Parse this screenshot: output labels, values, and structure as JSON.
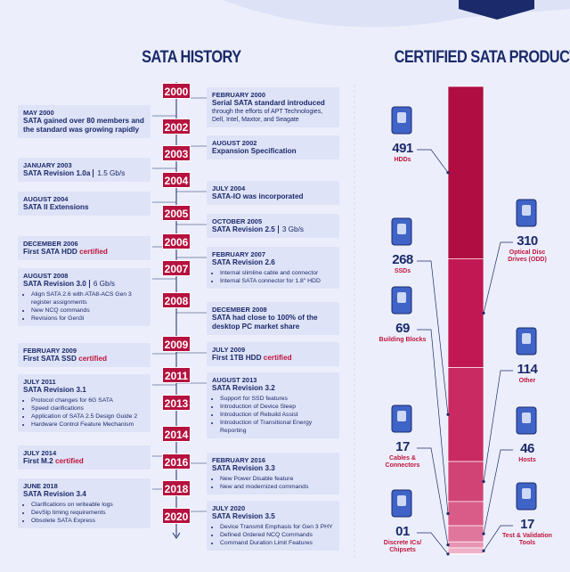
{
  "history": {
    "title": "SATA HISTORY",
    "years": [
      "2000",
      "2002",
      "2003",
      "2004",
      "2005",
      "2006",
      "2007",
      "2008",
      "2009",
      "2011",
      "2013",
      "2014",
      "2016",
      "2018",
      "2020"
    ],
    "events": [
      {
        "date": "MAY 2000",
        "title": "SATA gained over 80 members and the standard was growing rapidly"
      },
      {
        "date": "FEBRUARY 2000",
        "title": "Serial SATA standard introduced",
        "details": "through the efforts of APT Technologies, Dell, Intel, Maxtor, and Seagate"
      },
      {
        "date": "AUGUST 2002",
        "title": "Expansion Specification"
      },
      {
        "date": "JANUARY 2003",
        "title": "SATA Revision 1.0a",
        "tag": "1.5 Gb/s"
      },
      {
        "date": "JULY 2004",
        "title": "SATA-IO was incorporated"
      },
      {
        "date": "AUGUST 2004",
        "title": "SATA II Extensions"
      },
      {
        "date": "OCTOBER 2005",
        "title": "SATA Revision 2.5",
        "tag": "3 Gb/s"
      },
      {
        "date": "DECEMBER 2006",
        "title": "First SATA HDD",
        "highlight": "certified"
      },
      {
        "date": "FEBRUARY 2007",
        "title": "SATA Revision 2.6",
        "bullets": [
          "Internal slimline cable and connector",
          "Internal SATA connector for 1.8\" HDD"
        ]
      },
      {
        "date": "AUGUST 2008",
        "title": "SATA Revision 3.0",
        "tag": "6 Gb/s",
        "bullets": [
          "Align SATA 2.6 with ATA8-ACS Gen 3 register assignments",
          "New NCQ commands",
          "Revisions for Gen3i"
        ]
      },
      {
        "date": "DECEMBER 2008",
        "title": "SATA had close to 100% of the desktop PC market share"
      },
      {
        "date": "FEBRUARY 2009",
        "title": "First SATA SSD",
        "highlight": "certified"
      },
      {
        "date": "JULY 2009",
        "title": "First 1TB HDD",
        "highlight": "certified"
      },
      {
        "date": "JULY 2011",
        "title": "SATA Revision 3.1",
        "bullets": [
          "Protocol changes for 6G SATA",
          "Speed clarifications",
          "Application of SATA 2.5 Design Guide 2",
          "Hardware Control Feature Mechanism"
        ]
      },
      {
        "date": "AUGUST 2013",
        "title": "SATA Revision 3.2",
        "bullets": [
          "Support for SSD features",
          "Introduction of Device Sleep",
          "Introduction of Rebuild Assist",
          "Introduction of Transitional Energy Reporting"
        ]
      },
      {
        "date": "JULY 2014",
        "title": "First M.2",
        "highlight": "certified"
      },
      {
        "date": "FEBRUARY 2016",
        "title": "SATA Revision 3.3",
        "bullets": [
          "New Power Disable feature",
          "New and modernized commands"
        ]
      },
      {
        "date": "JUNE 2018",
        "title": "SATA Revision 3.4",
        "bullets": [
          "Clarifications on writeable logs",
          "DevSlp timing requirements",
          "Obsolete SATA Express"
        ]
      },
      {
        "date": "JULY 2020",
        "title": "SATA Revision 3.5",
        "bullets": [
          "Device Transmit Emphasis for Gen 3 PHY",
          "Defined Ordered NCQ Commands",
          "Command Duration Limit Features"
        ]
      }
    ]
  },
  "products": {
    "title": "CERTIFIED SATA PRODUCTS",
    "items": [
      {
        "count": "491",
        "label": "HDDs"
      },
      {
        "count": "310",
        "label": "Optical Disc Drives (ODD)"
      },
      {
        "count": "268",
        "label": "SSDs"
      },
      {
        "count": "114",
        "label": "Other"
      },
      {
        "count": "69",
        "label": "Building Blocks"
      },
      {
        "count": "46",
        "label": "Hosts"
      },
      {
        "count": "17",
        "label": "Cables & Connectors"
      },
      {
        "count": "17",
        "label": "Test & Validation Tools"
      },
      {
        "count": "01",
        "label": "Discrete ICs/ Chipsets"
      }
    ]
  }
}
